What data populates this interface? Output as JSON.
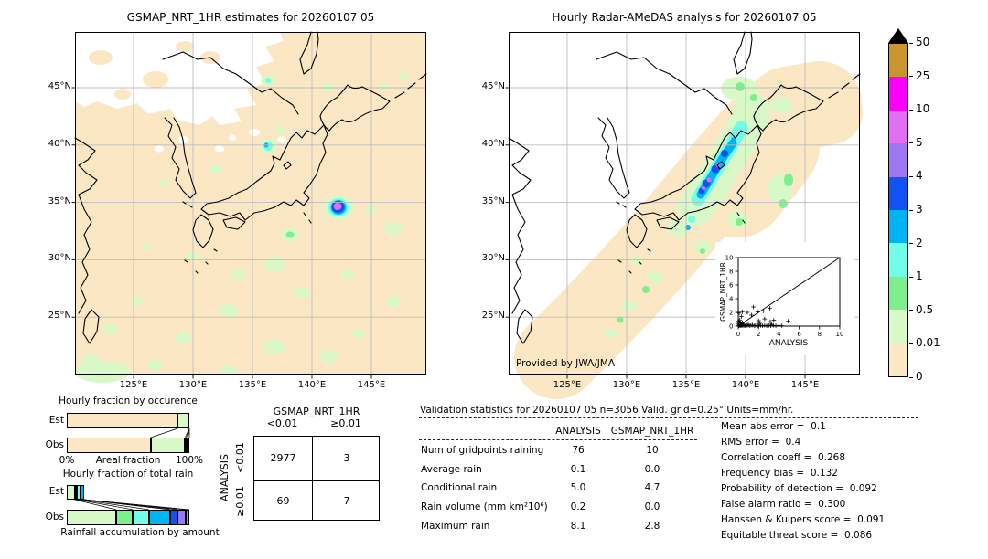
{
  "colors": {
    "peach": "#fbe7c3",
    "palegreen": "#d9f8c7",
    "green": "#7df08d",
    "cyan": "#71fde8",
    "skyblue": "#00b4f4",
    "blue": "#1252f1",
    "purple": "#9b77f2",
    "orchid": "#e16ef4",
    "magenta": "#fb00fb",
    "tan": "#c9952f",
    "grid": "#bdbdbd"
  },
  "chart_data": [
    {
      "id": "gsmap_map",
      "type": "heatmap",
      "title": "GSMAP_NRT_1HR estimates for 20260107 05",
      "x_tick_labels": [
        "125°E",
        "130°E",
        "135°E",
        "140°E",
        "145°E"
      ],
      "y_tick_labels": [
        "45°N",
        "40°N",
        "35°N",
        "30°N",
        "25°N"
      ],
      "units": "mm/hr"
    },
    {
      "id": "radar_map",
      "type": "heatmap",
      "title": "Hourly Radar-AMeDAS analysis for 20260107 05",
      "credit": "Provided by JWA/JMA",
      "x_tick_labels": [
        "125°E",
        "130°E",
        "135°E",
        "140°E",
        "145°E"
      ],
      "y_tick_labels": [
        "45°N",
        "40°N",
        "35°N",
        "30°N",
        "25°N"
      ],
      "units": "mm/hr"
    },
    {
      "id": "inset_scatter",
      "type": "scatter",
      "xlabel": "ANALYSIS",
      "ylabel": "GSMAP_NRT_1HR",
      "xlim": [
        0,
        10
      ],
      "ylim": [
        0,
        10
      ],
      "diagonal": true,
      "x_tick_labels": [
        "0",
        "2",
        "4",
        "6",
        "8",
        "10"
      ],
      "y_tick_labels": [
        "0",
        "2",
        "4",
        "6",
        "8",
        "10"
      ],
      "points": [
        [
          0.05,
          0.05
        ],
        [
          0.1,
          0.15
        ],
        [
          0.05,
          0.3
        ],
        [
          0.15,
          0.1
        ],
        [
          0.2,
          0.05
        ],
        [
          0.25,
          0.2
        ],
        [
          0.3,
          0.1
        ],
        [
          0.1,
          0.5
        ],
        [
          0.2,
          0.45
        ],
        [
          0.3,
          0.35
        ],
        [
          0.05,
          0.7
        ],
        [
          0.15,
          0.9
        ],
        [
          0.4,
          0.5
        ],
        [
          0.35,
          0.15
        ],
        [
          0.45,
          0.05
        ],
        [
          0.5,
          0.2
        ],
        [
          0.6,
          0.1
        ],
        [
          0.7,
          0.05
        ],
        [
          0.8,
          0.15
        ],
        [
          0.9,
          0.1
        ],
        [
          1.0,
          0.2
        ],
        [
          1.1,
          0.05
        ],
        [
          1.25,
          0.1
        ],
        [
          1.4,
          0.15
        ],
        [
          1.55,
          0.05
        ],
        [
          1.7,
          0.1
        ],
        [
          1.9,
          0.05
        ],
        [
          2.05,
          0.15
        ],
        [
          2.2,
          0.1
        ],
        [
          2.4,
          0.05
        ],
        [
          2.6,
          0.1
        ],
        [
          2.8,
          0.05
        ],
        [
          3.0,
          0.1
        ],
        [
          3.2,
          0.05
        ],
        [
          3.45,
          0.1
        ],
        [
          3.7,
          0.05
        ],
        [
          4.0,
          0.1
        ],
        [
          4.3,
          0.05
        ],
        [
          0.3,
          1.4
        ],
        [
          0.1,
          1.9
        ],
        [
          0.4,
          2.1
        ],
        [
          0.9,
          2.0
        ],
        [
          1.3,
          1.6
        ],
        [
          1.5,
          2.8
        ],
        [
          1.9,
          2.1
        ],
        [
          2.5,
          2.2
        ],
        [
          3.1,
          2.6
        ],
        [
          2.0,
          0.8
        ],
        [
          2.6,
          1.05
        ],
        [
          3.15,
          0.65
        ],
        [
          3.5,
          0.85
        ],
        [
          4.9,
          0.7
        ],
        [
          2.1,
          0.4
        ],
        [
          3.3,
          0.25
        ],
        [
          0.4,
          0.5
        ]
      ]
    },
    {
      "id": "occurrence",
      "type": "bar",
      "title": "Hourly fraction by occurence",
      "rows": [
        "Est",
        "Obs"
      ],
      "xlabel": "Areal fraction",
      "x_min_label": "0%",
      "x_max_label": "100%",
      "est_segments": [
        {
          "color": "peach",
          "pct": 90.5
        },
        {
          "color": "palegreen",
          "pct": 9.5
        }
      ],
      "obs_segments": [
        {
          "color": "peach",
          "pct": 68.5
        },
        {
          "color": "palegreen",
          "pct": 28.0
        },
        {
          "color": "green",
          "pct": 1.0
        },
        {
          "color": "cyan",
          "pct": 1.3
        },
        {
          "color": "skyblue",
          "pct": 1.2
        }
      ]
    },
    {
      "id": "total_rain",
      "type": "bar",
      "title": "Hourly fraction of total rain",
      "rows": [
        "Est",
        "Obs"
      ],
      "xlabel": "Rainfall accumulation by amount",
      "est_segments": [
        {
          "color": "palegreen",
          "pct": 6.5
        },
        {
          "color": "green",
          "pct": 2.0
        },
        {
          "color": "cyan",
          "pct": 2.5
        },
        {
          "color": "skyblue",
          "pct": 3.0
        }
      ],
      "obs_segments": [
        {
          "color": "palegreen",
          "pct": 40.5
        },
        {
          "color": "green",
          "pct": 13.5
        },
        {
          "color": "cyan",
          "pct": 13.0
        },
        {
          "color": "skyblue",
          "pct": 17.0
        },
        {
          "color": "blue",
          "pct": 6.5
        },
        {
          "color": "purple",
          "pct": 6.5
        },
        {
          "color": "orchid",
          "pct": 3.0
        }
      ]
    },
    {
      "id": "contingency",
      "type": "table",
      "col_group": "GSMAP_NRT_1HR",
      "row_group": "ANALYSIS",
      "col_labels": [
        "<0.01",
        "≥0.01"
      ],
      "row_labels": [
        "<0.01",
        "≥0.01"
      ],
      "values": [
        [
          "2977",
          "3"
        ],
        [
          "69",
          "7"
        ]
      ]
    },
    {
      "id": "validation",
      "type": "table",
      "title": "Validation statistics for 20260107 05  n=3056 Valid. grid=0.25° Units=mm/hr.",
      "columns": [
        "ANALYSIS",
        "GSMAP_NRT_1HR"
      ],
      "rows": [
        {
          "label": "Num of gridpoints raining",
          "values": [
            "76",
            "10"
          ]
        },
        {
          "label": "Average rain",
          "values": [
            "0.1",
            "0.0"
          ]
        },
        {
          "label": "Conditional rain",
          "values": [
            "5.0",
            "4.7"
          ]
        },
        {
          "label": "Rain volume (mm km²10⁶)",
          "values": [
            "0.2",
            "0.0"
          ]
        },
        {
          "label": "Maximum rain",
          "values": [
            "8.1",
            "2.8"
          ]
        }
      ]
    }
  ],
  "colorbar": {
    "tick_labels": [
      "50",
      "25",
      "10",
      "5",
      "4",
      "3",
      "2",
      "1",
      "0.5",
      "0.01",
      "0"
    ],
    "segments": [
      "tan",
      "magenta",
      "orchid",
      "purple",
      "blue",
      "skyblue",
      "cyan",
      "green",
      "palegreen",
      "peach"
    ]
  },
  "scores": [
    {
      "label": "Mean abs error",
      "value": "0.1"
    },
    {
      "label": "RMS error",
      "value": "0.4"
    },
    {
      "label": "Correlation coeff",
      "value": "0.268"
    },
    {
      "label": "Frequency bias",
      "value": "0.132"
    },
    {
      "label": "Probability of detection",
      "value": "0.092"
    },
    {
      "label": "False alarm ratio",
      "value": "0.300"
    },
    {
      "label": "Hanssen & Kuipers score",
      "value": "0.091"
    },
    {
      "label": "Equitable threat score",
      "value": "0.086"
    }
  ]
}
